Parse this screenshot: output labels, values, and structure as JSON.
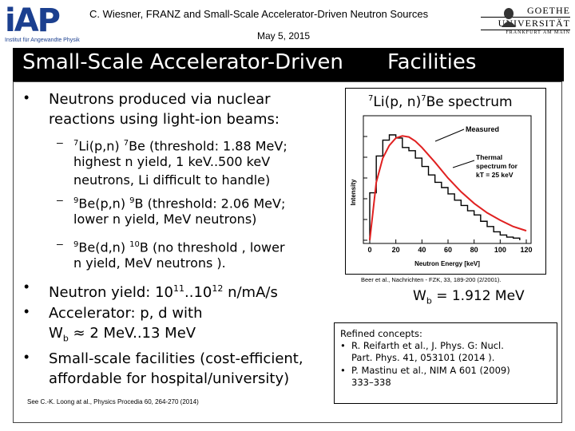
{
  "header": {
    "logo_left": "iAP",
    "logo_left_sub": "Institut für Angewandte Physik",
    "line": "C. Wiesner, FRANZ and Small-Scale Accelerator-Driven Neutron Sources",
    "date": "May 5, 2015",
    "logo_right_1": "GOETHE",
    "logo_right_2": "UNIVERSITÄT",
    "logo_right_3": "FRANKFURT AM MAIN"
  },
  "title": {
    "left": "Small-Scale Accelerator-Driven",
    "right": "Facilities"
  },
  "left": {
    "b1_l1": "Neutrons produced via nuclear",
    "b1_l2": "reactions using light-ion beams:",
    "s1_pre": "7",
    "s1_a": "Li(p,n) ",
    "s1_sup2": "7",
    "s1_b": "Be (threshold: 1.88 MeV;",
    "s1_l2": "highest n yield, 1 keV..500 keV",
    "s1_l3": "neutrons, Li difficult to handle)",
    "s2_pre": "9",
    "s2_a": "Be(p,n) ",
    "s2_sup2": "9",
    "s2_b": "B (threshold:  2.06 MeV;",
    "s2_l2": "lower n yield, MeV neutrons)",
    "s3_pre": "9",
    "s3_a": "Be(d,n) ",
    "s3_sup2": "10",
    "s3_b": "B (no threshold  , lower",
    "s3_l2": "n yield,  MeV neutrons ).",
    "b2_a": "Neutron yield:  10",
    "b2_sup1": "11",
    "b2_b": "..10",
    "b2_sup2": "12",
    "b2_c": " n/mA/s",
    "b3_l1": "Accelerator: p, d with",
    "b3_l2a": "W",
    "b3_l2sub": "b",
    "b3_l2b": " ≈ 2 MeV..13 MeV",
    "b4_l1": "Small-scale facilities (cost-efficient,",
    "b4_l2": "affordable for hospital/university)",
    "cite": "See C.-K. Loong at al., Physics Procedia 60, 264-270 (2014)"
  },
  "chart_data": {
    "type": "bar",
    "title_sup1": "7",
    "title_a": "Li(p, n)",
    "title_sup2": "7",
    "title_b": "Be spectrum",
    "xlabel": "Neutron Energy [keV]",
    "ylabel": "Intensity",
    "xlim": [
      0,
      120
    ],
    "xticks": [
      "0",
      "20",
      "40",
      "60",
      "80",
      "100",
      "120"
    ],
    "legend_measured": "Measured",
    "legend_thermal_1": "Thermal",
    "legend_thermal_2": "spectrum for",
    "legend_thermal_3": "kT = 25 keV",
    "measured_x": [
      0,
      5,
      10,
      15,
      20,
      25,
      30,
      35,
      40,
      45,
      50,
      55,
      60,
      65,
      70,
      75,
      80,
      85,
      90,
      95,
      100,
      105,
      110
    ],
    "measured_y": [
      0.45,
      0.8,
      0.95,
      1.0,
      0.97,
      0.88,
      0.85,
      0.78,
      0.7,
      0.62,
      0.55,
      0.5,
      0.44,
      0.38,
      0.33,
      0.28,
      0.24,
      0.18,
      0.13,
      0.08,
      0.05,
      0.03,
      0.02
    ],
    "thermal_x": [
      0,
      5,
      10,
      15,
      20,
      25,
      30,
      35,
      40,
      50,
      60,
      70,
      80,
      90,
      100,
      110,
      120
    ],
    "thermal_y": [
      0.0,
      0.55,
      0.78,
      0.9,
      0.97,
      0.99,
      0.98,
      0.94,
      0.88,
      0.74,
      0.59,
      0.46,
      0.35,
      0.26,
      0.19,
      0.13,
      0.09
    ]
  },
  "right": {
    "chart_cite": "Beer et al., Nachrichten - FZK, 33, 189-200 (2/2001).",
    "wb_a": "W",
    "wb_sub": "b",
    "wb_b": " = 1.912 MeV",
    "ref_title": "Refined concepts:",
    "ref1_l1": "R. Reifarth et al., J. Phys. G: Nucl.",
    "ref1_l2": "Part. Phys. 41, 053101 (2014   ).",
    "ref2_l1": "P. Mastinu et al., NIM A 601   (2009)",
    "ref2_l2": "333–338"
  },
  "colors": {
    "title_bg": "#000000",
    "logo_blue": "#1b3f8f",
    "measured": "#e02020",
    "thermal": "#000000"
  }
}
